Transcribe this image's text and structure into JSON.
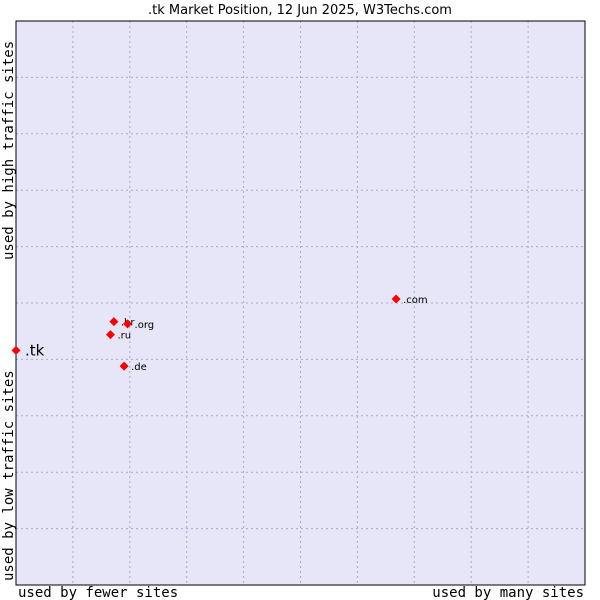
{
  "chart_data": {
    "type": "scatter",
    "title": ".tk Market Position, 12 Jun 2025, W3Techs.com",
    "xlabel_left": "used by fewer sites",
    "xlabel_right": "used by many sites",
    "ylabel_low": "used by low traffic sites",
    "ylabel_high": "used by high traffic sites",
    "xlim": [
      0,
      100
    ],
    "ylim": [
      0,
      100
    ],
    "grid": true,
    "colors": {
      "plot_bg": "#e6e6f8",
      "grid": "#aaaacc",
      "point": "#ff0000"
    },
    "points": [
      {
        "label": ".com",
        "x": 66.8,
        "y": 50.7,
        "highlight": false
      },
      {
        "label": ".br",
        "x": 17.2,
        "y": 46.7,
        "highlight": false
      },
      {
        "label": ".org",
        "x": 19.6,
        "y": 46.3,
        "highlight": false
      },
      {
        "label": ".ru",
        "x": 16.6,
        "y": 44.4,
        "highlight": false
      },
      {
        "label": ".de",
        "x": 19.0,
        "y": 38.8,
        "highlight": false
      },
      {
        "label": ".tk",
        "x": 0.0,
        "y": 41.6,
        "highlight": true
      }
    ]
  }
}
